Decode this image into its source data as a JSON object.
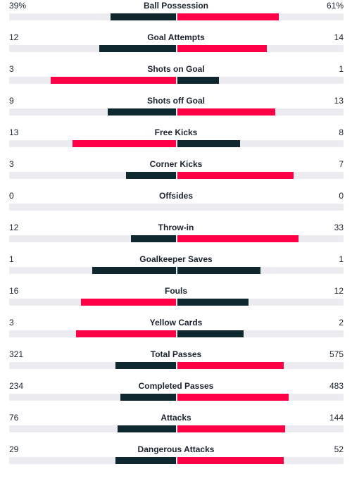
{
  "colors": {
    "leading": "#ff0046",
    "trailing": "#0f2830",
    "track": "#ececf0"
  },
  "stats": [
    {
      "name": "Ball Possession",
      "home": "39%",
      "away": "61%",
      "home_share": 0.39,
      "away_share": 0.61
    },
    {
      "name": "Goal Attempts",
      "home": "12",
      "away": "14",
      "home_share": 0.46,
      "away_share": 0.54
    },
    {
      "name": "Shots on Goal",
      "home": "3",
      "away": "1",
      "home_share": 0.75,
      "away_share": 0.25
    },
    {
      "name": "Shots off Goal",
      "home": "9",
      "away": "13",
      "home_share": 0.41,
      "away_share": 0.59
    },
    {
      "name": "Free Kicks",
      "home": "13",
      "away": "8",
      "home_share": 0.62,
      "away_share": 0.38
    },
    {
      "name": "Corner Kicks",
      "home": "3",
      "away": "7",
      "home_share": 0.3,
      "away_share": 0.7
    },
    {
      "name": "Offsides",
      "home": "0",
      "away": "0",
      "home_share": 0,
      "away_share": 0
    },
    {
      "name": "Throw-in",
      "home": "12",
      "away": "33",
      "home_share": 0.27,
      "away_share": 0.73
    },
    {
      "name": "Goalkeeper Saves",
      "home": "1",
      "away": "1",
      "home_share": 0.5,
      "away_share": 0.5
    },
    {
      "name": "Fouls",
      "home": "16",
      "away": "12",
      "home_share": 0.57,
      "away_share": 0.43
    },
    {
      "name": "Yellow Cards",
      "home": "3",
      "away": "2",
      "home_share": 0.6,
      "away_share": 0.4
    },
    {
      "name": "Total Passes",
      "home": "321",
      "away": "575",
      "home_share": 0.36,
      "away_share": 0.64
    },
    {
      "name": "Completed Passes",
      "home": "234",
      "away": "483",
      "home_share": 0.33,
      "away_share": 0.67
    },
    {
      "name": "Attacks",
      "home": "76",
      "away": "144",
      "home_share": 0.35,
      "away_share": 0.65
    },
    {
      "name": "Dangerous Attacks",
      "home": "29",
      "away": "52",
      "home_share": 0.36,
      "away_share": 0.64
    }
  ]
}
